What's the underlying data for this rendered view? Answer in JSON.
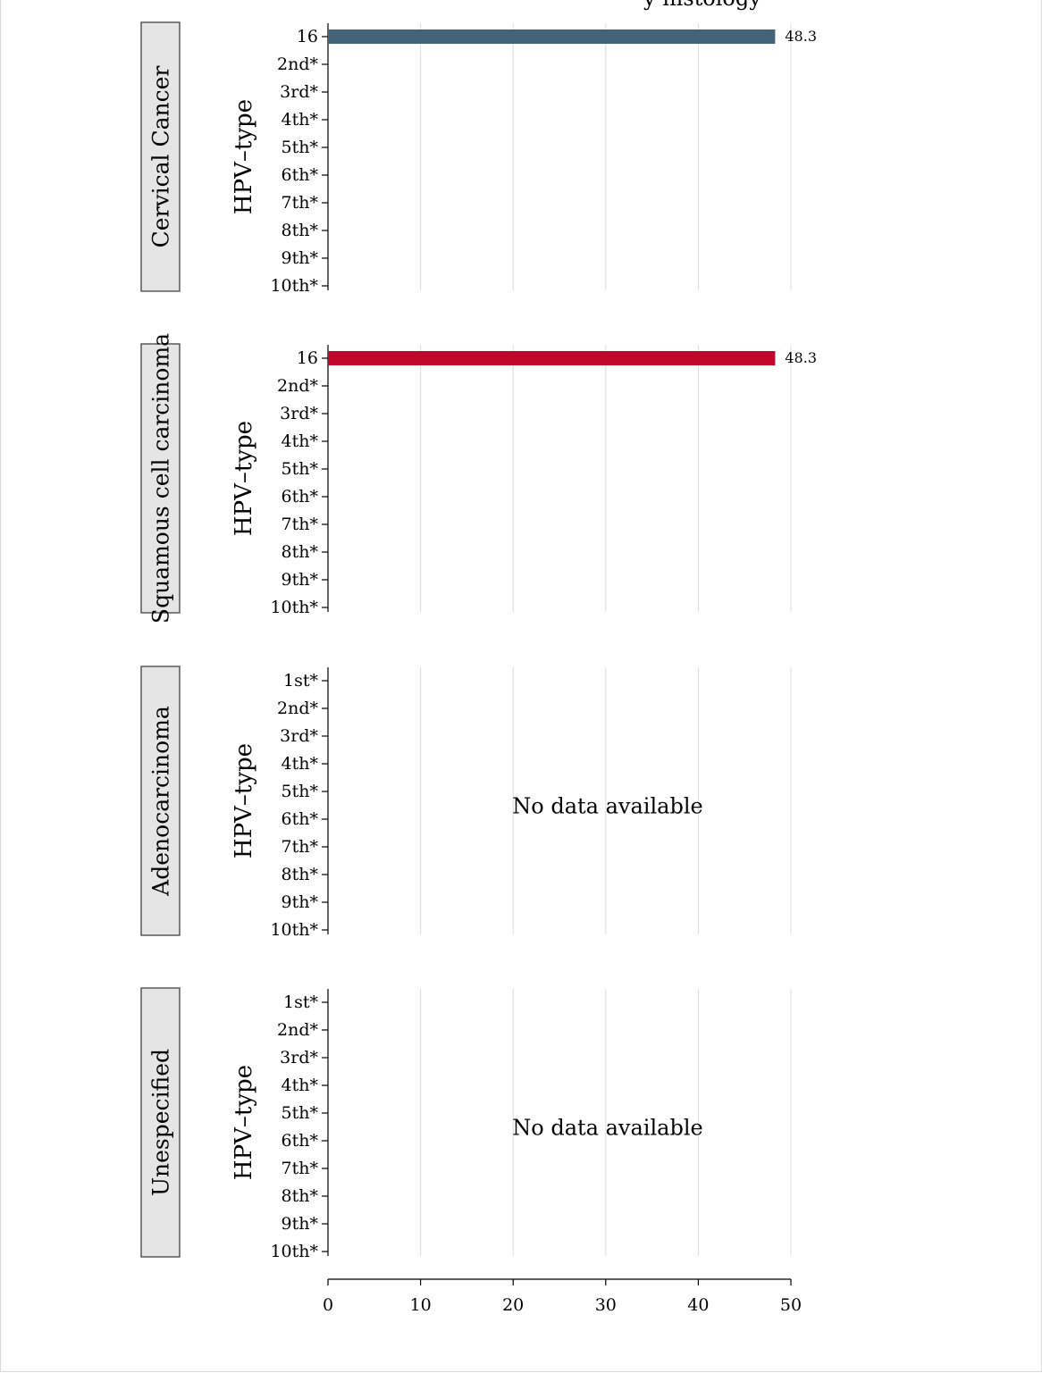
{
  "title_fragment": "y histology",
  "chart_data": {
    "type": "bar",
    "orientation": "horizontal",
    "xlim": [
      0,
      50
    ],
    "xticks": [
      0,
      10,
      20,
      30,
      40,
      50
    ],
    "grid": true,
    "ylabel": "HPV–type",
    "panels": [
      {
        "label": "Cervical Cancer",
        "categories": [
          "16",
          "2nd*",
          "3rd*",
          "4th*",
          "5th*",
          "6th*",
          "7th*",
          "8th*",
          "9th*",
          "10th*"
        ],
        "values": [
          48.3
        ],
        "value_labels": [
          "48.3"
        ],
        "color": "#436378",
        "message": ""
      },
      {
        "label": "Squamous cell carcinoma",
        "categories": [
          "16",
          "2nd*",
          "3rd*",
          "4th*",
          "5th*",
          "6th*",
          "7th*",
          "8th*",
          "9th*",
          "10th*"
        ],
        "values": [
          48.3
        ],
        "value_labels": [
          "48.3"
        ],
        "color": "#c0062b",
        "message": ""
      },
      {
        "label": "Adenocarcinoma",
        "categories": [
          "1st*",
          "2nd*",
          "3rd*",
          "4th*",
          "5th*",
          "6th*",
          "7th*",
          "8th*",
          "9th*",
          "10th*"
        ],
        "values": [],
        "value_labels": [],
        "color": "#436378",
        "message": "No data available"
      },
      {
        "label": "Unespecified",
        "categories": [
          "1st*",
          "2nd*",
          "3rd*",
          "4th*",
          "5th*",
          "6th*",
          "7th*",
          "8th*",
          "9th*",
          "10th*"
        ],
        "values": [],
        "value_labels": [],
        "color": "#436378",
        "message": "No data available"
      }
    ]
  }
}
